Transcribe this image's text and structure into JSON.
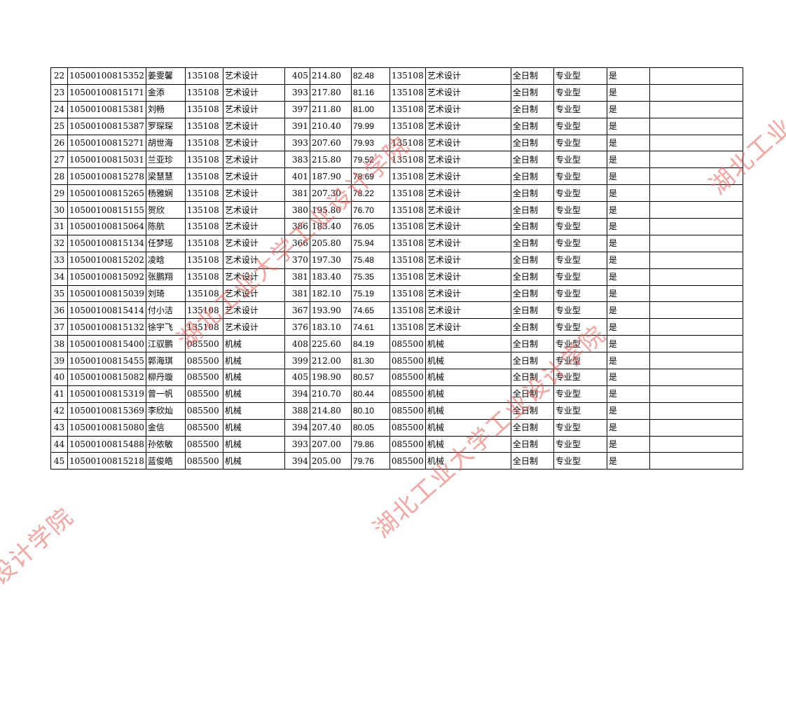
{
  "watermark": {
    "text": "湖北工业大学工业设计学院",
    "color": "#f05a50"
  },
  "table": {
    "rows": [
      [
        "22",
        "10500100815352",
        "姜雯馨",
        "135108",
        "艺术设计",
        "405",
        "214.80",
        "82.48",
        "135108",
        "艺术设计",
        "全日制",
        "专业型",
        "是",
        ""
      ],
      [
        "23",
        "10500100815171",
        "金添",
        "135108",
        "艺术设计",
        "393",
        "217.80",
        "81.16",
        "135108",
        "艺术设计",
        "全日制",
        "专业型",
        "是",
        ""
      ],
      [
        "24",
        "10500100815381",
        "刘畅",
        "135108",
        "艺术设计",
        "397",
        "211.80",
        "81.00",
        "135108",
        "艺术设计",
        "全日制",
        "专业型",
        "是",
        ""
      ],
      [
        "25",
        "10500100815387",
        "罗琛琛",
        "135108",
        "艺术设计",
        "391",
        "210.40",
        "79.99",
        "135108",
        "艺术设计",
        "全日制",
        "专业型",
        "是",
        ""
      ],
      [
        "26",
        "10500100815271",
        "胡世海",
        "135108",
        "艺术设计",
        "393",
        "207.60",
        "79.93",
        "135108",
        "艺术设计",
        "全日制",
        "专业型",
        "是",
        ""
      ],
      [
        "27",
        "10500100815031",
        "兰亚珍",
        "135108",
        "艺术设计",
        "383",
        "215.80",
        "79.52",
        "135108",
        "艺术设计",
        "全日制",
        "专业型",
        "是",
        ""
      ],
      [
        "28",
        "10500100815278",
        "梁慧慧",
        "135108",
        "艺术设计",
        "401",
        "187.90",
        "78.69",
        "135108",
        "艺术设计",
        "全日制",
        "专业型",
        "是",
        ""
      ],
      [
        "29",
        "10500100815265",
        "杨雅娴",
        "135108",
        "艺术设计",
        "381",
        "207.30",
        "78.22",
        "135108",
        "艺术设计",
        "全日制",
        "专业型",
        "是",
        ""
      ],
      [
        "30",
        "10500100815155",
        "贺欣",
        "135108",
        "艺术设计",
        "380",
        "195.80",
        "76.70",
        "135108",
        "艺术设计",
        "全日制",
        "专业型",
        "是",
        ""
      ],
      [
        "31",
        "10500100815064",
        "陈航",
        "135108",
        "艺术设计",
        "386",
        "183.40",
        "76.05",
        "135108",
        "艺术设计",
        "全日制",
        "专业型",
        "是",
        ""
      ],
      [
        "32",
        "10500100815134",
        "任梦瑶",
        "135108",
        "艺术设计",
        "366",
        "205.80",
        "75.94",
        "135108",
        "艺术设计",
        "全日制",
        "专业型",
        "是",
        ""
      ],
      [
        "33",
        "10500100815202",
        "凌晗",
        "135108",
        "艺术设计",
        "370",
        "197.30",
        "75.48",
        "135108",
        "艺术设计",
        "全日制",
        "专业型",
        "是",
        ""
      ],
      [
        "34",
        "10500100815092",
        "张鹏翔",
        "135108",
        "艺术设计",
        "381",
        "183.40",
        "75.35",
        "135108",
        "艺术设计",
        "全日制",
        "专业型",
        "是",
        ""
      ],
      [
        "35",
        "10500100815039",
        "刘琦",
        "135108",
        "艺术设计",
        "381",
        "182.10",
        "75.19",
        "135108",
        "艺术设计",
        "全日制",
        "专业型",
        "是",
        ""
      ],
      [
        "36",
        "10500100815414",
        "付小洁",
        "135108",
        "艺术设计",
        "367",
        "193.90",
        "74.65",
        "135108",
        "艺术设计",
        "全日制",
        "专业型",
        "是",
        ""
      ],
      [
        "37",
        "10500100815132",
        "徐宇飞",
        "135108",
        "艺术设计",
        "376",
        "183.10",
        "74.61",
        "135108",
        "艺术设计",
        "全日制",
        "专业型",
        "是",
        ""
      ],
      [
        "38",
        "10500100815400",
        "江驭鹏",
        "085500",
        "机械",
        "408",
        "225.60",
        "84.19",
        "085500",
        "机械",
        "全日制",
        "专业型",
        "是",
        ""
      ],
      [
        "39",
        "10500100815455",
        "郭海琪",
        "085500",
        "机械",
        "399",
        "212.00",
        "81.30",
        "085500",
        "机械",
        "全日制",
        "专业型",
        "是",
        ""
      ],
      [
        "40",
        "10500100815082",
        "柳丹璇",
        "085500",
        "机械",
        "405",
        "198.90",
        "80.57",
        "085500",
        "机械",
        "全日制",
        "专业型",
        "是",
        ""
      ],
      [
        "41",
        "10500100815319",
        "曾一帆",
        "085500",
        "机械",
        "394",
        "210.70",
        "80.44",
        "085500",
        "机械",
        "全日制",
        "专业型",
        "是",
        ""
      ],
      [
        "42",
        "10500100815369",
        "李欣灿",
        "085500",
        "机械",
        "388",
        "214.80",
        "80.10",
        "085500",
        "机械",
        "全日制",
        "专业型",
        "是",
        ""
      ],
      [
        "43",
        "10500100815080",
        "金信",
        "085500",
        "机械",
        "394",
        "207.40",
        "80.05",
        "085500",
        "机械",
        "全日制",
        "专业型",
        "是",
        ""
      ],
      [
        "44",
        "10500100815488",
        "孙依敏",
        "085500",
        "机械",
        "393",
        "207.00",
        "79.86",
        "085500",
        "机械",
        "全日制",
        "专业型",
        "是",
        ""
      ],
      [
        "45",
        "10500100815218",
        "蓝俊皓",
        "085500",
        "机械",
        "394",
        "205.00",
        "79.76",
        "085500",
        "机械",
        "全日制",
        "专业型",
        "是",
        ""
      ]
    ]
  }
}
